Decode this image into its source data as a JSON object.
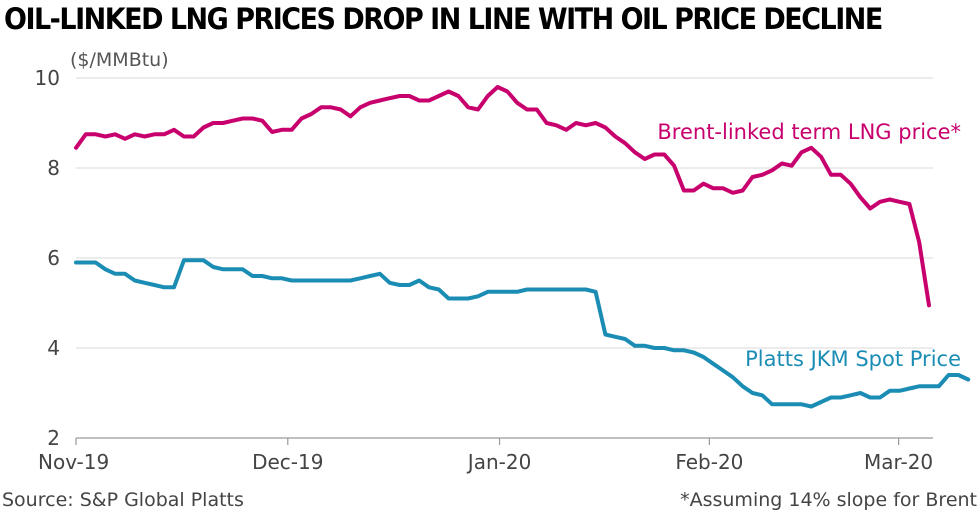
{
  "chart_data": {
    "type": "line",
    "title": "OIL-LINKED LNG PRICES DROP IN LINE WITH OIL PRICE DECLINE",
    "unit_label": "($/MMBtu)",
    "ylim": [
      2,
      10
    ],
    "y_ticks": [
      "2",
      "4",
      "6",
      "8",
      "10"
    ],
    "x_tick_labels": [
      "Nov-19",
      "Dec-19",
      "Jan-20",
      "Feb-20",
      "Mar-20"
    ],
    "grid": true,
    "series": [
      {
        "name": "Brent-linked term LNG price*",
        "color": "#c8006e",
        "values": [
          8.45,
          8.75,
          8.75,
          8.7,
          8.75,
          8.65,
          8.75,
          8.7,
          8.75,
          8.75,
          8.85,
          8.7,
          8.7,
          8.9,
          9.0,
          9.0,
          9.05,
          9.1,
          9.1,
          9.05,
          8.8,
          8.85,
          8.85,
          9.1,
          9.2,
          9.35,
          9.35,
          9.3,
          9.15,
          9.35,
          9.45,
          9.5,
          9.55,
          9.6,
          9.6,
          9.5,
          9.5,
          9.6,
          9.7,
          9.6,
          9.35,
          9.3,
          9.6,
          9.8,
          9.7,
          9.45,
          9.3,
          9.3,
          9.0,
          8.95,
          8.85,
          9.0,
          8.95,
          9.0,
          8.9,
          8.7,
          8.55,
          8.35,
          8.2,
          8.3,
          8.3,
          8.05,
          7.5,
          7.5,
          7.65,
          7.55,
          7.55,
          7.45,
          7.5,
          7.8,
          7.85,
          7.95,
          8.1,
          8.05,
          8.35,
          8.45,
          8.25,
          7.85,
          7.85,
          7.65,
          7.35,
          7.1,
          7.25,
          7.3,
          7.25,
          7.2,
          6.35,
          4.95
        ]
      },
      {
        "name": "Platts JKM Spot Price",
        "color": "#1b8db5",
        "values": [
          5.9,
          5.9,
          5.9,
          5.75,
          5.65,
          5.65,
          5.5,
          5.45,
          5.4,
          5.35,
          5.35,
          5.95,
          5.95,
          5.95,
          5.8,
          5.75,
          5.75,
          5.75,
          5.6,
          5.6,
          5.55,
          5.55,
          5.5,
          5.5,
          5.5,
          5.5,
          5.5,
          5.5,
          5.5,
          5.55,
          5.6,
          5.65,
          5.45,
          5.4,
          5.4,
          5.5,
          5.35,
          5.3,
          5.1,
          5.1,
          5.1,
          5.15,
          5.25,
          5.25,
          5.25,
          5.25,
          5.3,
          5.3,
          5.3,
          5.3,
          5.3,
          5.3,
          5.3,
          5.25,
          4.3,
          4.25,
          4.2,
          4.05,
          4.05,
          4.0,
          4.0,
          3.95,
          3.95,
          3.9,
          3.8,
          3.65,
          3.5,
          3.35,
          3.15,
          3.0,
          2.95,
          2.75,
          2.75,
          2.75,
          2.75,
          2.7,
          2.8,
          2.9,
          2.9,
          2.95,
          3.0,
          2.9,
          2.9,
          3.05,
          3.05,
          3.1,
          3.15,
          3.15,
          3.15,
          3.4,
          3.4,
          3.3
        ]
      }
    ]
  },
  "footer": {
    "source": "Source: S&P Global Platts",
    "note": "*Assuming 14% slope for Brent"
  }
}
